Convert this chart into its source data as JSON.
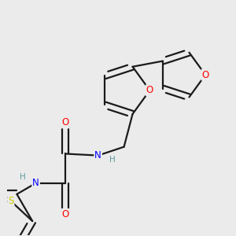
{
  "bg_color": "#ebebeb",
  "bond_color": "#1a1a1a",
  "atom_colors": {
    "O": "#ff0000",
    "N": "#0000ff",
    "S": "#cccc00",
    "C": "#1a1a1a",
    "H": "#5a9a9a"
  },
  "font_size": 8.5,
  "lw": 1.6
}
